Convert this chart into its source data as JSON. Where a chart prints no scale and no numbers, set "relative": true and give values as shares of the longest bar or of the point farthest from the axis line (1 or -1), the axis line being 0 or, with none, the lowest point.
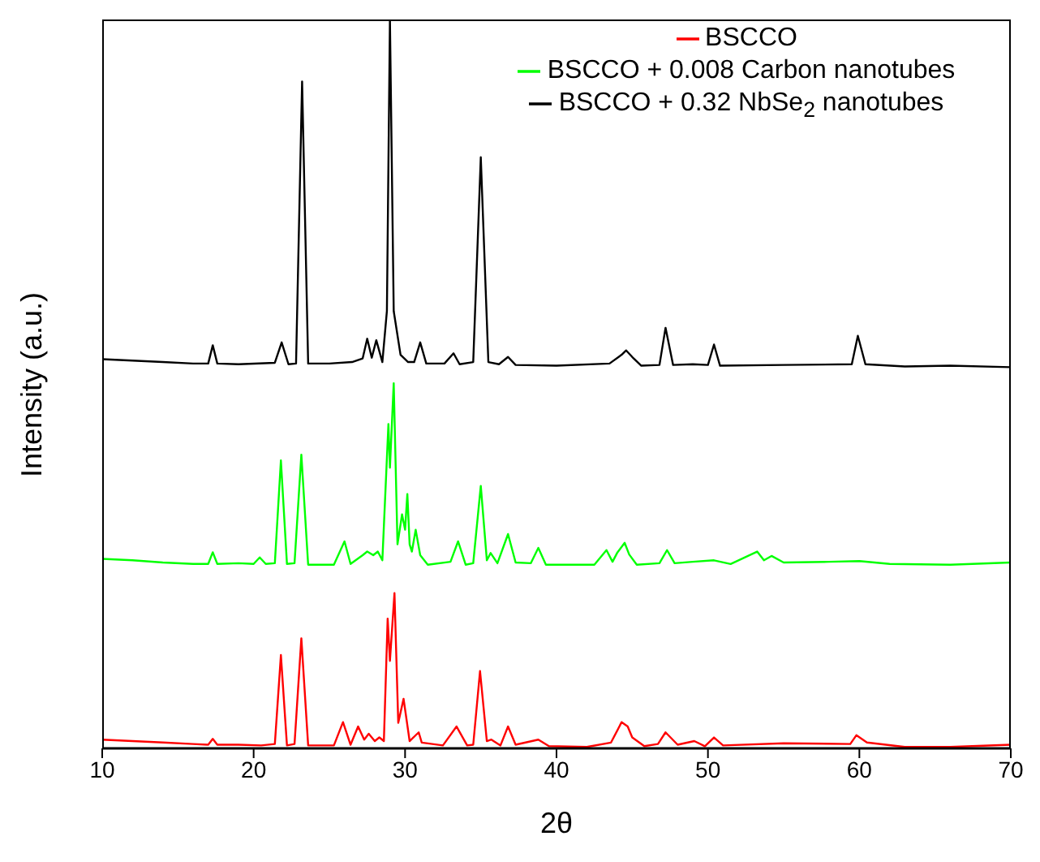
{
  "chart_data": {
    "type": "line",
    "xlabel": "2θ",
    "ylabel": "Intensity (a.u.)",
    "relative": true,
    "xlim": [
      10,
      70
    ],
    "xticks": [
      10,
      20,
      30,
      40,
      50,
      60,
      70
    ],
    "legend": "top right",
    "grid": false,
    "marker": "none",
    "line_style": "solid",
    "series": [
      {
        "name": "BSCCO",
        "color": "#ff0000",
        "x": [
          10,
          12,
          14,
          16,
          17.0,
          17.3,
          17.6,
          19,
          20.5,
          21.4,
          21.8,
          22.2,
          22.7,
          23.15,
          23.6,
          25.3,
          25.9,
          26.4,
          26.9,
          27.3,
          27.6,
          28.0,
          28.3,
          28.6,
          28.85,
          29.0,
          29.3,
          29.55,
          29.9,
          30.3,
          30.9,
          31.1,
          32.5,
          33.4,
          34.1,
          34.5,
          34.95,
          35.4,
          35.7,
          36.3,
          36.8,
          37.3,
          38.8,
          39.5,
          42,
          43.6,
          44.3,
          44.7,
          45.0,
          45.8,
          46.7,
          47.2,
          48,
          49.1,
          49.8,
          50.4,
          51,
          55,
          59.4,
          59.8,
          60.5,
          63,
          66,
          70
        ],
        "values": [
          0.012,
          0.01,
          0.008,
          0.006,
          0.005,
          0.013,
          0.005,
          0.005,
          0.004,
          0.006,
          0.128,
          0.004,
          0.006,
          0.151,
          0.004,
          0.004,
          0.036,
          0.005,
          0.03,
          0.012,
          0.02,
          0.01,
          0.015,
          0.01,
          0.178,
          0.12,
          0.213,
          0.035,
          0.068,
          0.01,
          0.022,
          0.008,
          0.004,
          0.03,
          0.004,
          0.005,
          0.106,
          0.01,
          0.012,
          0.004,
          0.03,
          0.005,
          0.012,
          0.003,
          0.002,
          0.008,
          0.036,
          0.03,
          0.015,
          0.003,
          0.006,
          0.022,
          0.005,
          0.01,
          0.003,
          0.015,
          0.004,
          0.007,
          0.006,
          0.018,
          0.008,
          0.002,
          0.002,
          0.005
        ]
      },
      {
        "name": "BSCCO + 0.008 Carbon nanotubes",
        "color": "#00ff00",
        "x": [
          10,
          12,
          14,
          16,
          17.0,
          17.3,
          17.6,
          19,
          20.0,
          20.4,
          20.8,
          21.4,
          21.8,
          22.2,
          22.7,
          23.15,
          23.6,
          25.3,
          26.0,
          26.4,
          27.2,
          27.5,
          27.9,
          28.2,
          28.5,
          28.9,
          29.0,
          29.25,
          29.5,
          29.8,
          30.0,
          30.15,
          30.3,
          30.45,
          30.7,
          31.0,
          31.5,
          33.0,
          33.5,
          34.0,
          34.5,
          35.0,
          35.4,
          35.65,
          36.1,
          36.8,
          37.3,
          38.3,
          38.8,
          39.3,
          42.5,
          43.3,
          43.7,
          44.0,
          44.5,
          44.8,
          45.3,
          46.8,
          47.3,
          47.8,
          49,
          50.4,
          51.5,
          53.25,
          53.7,
          54.2,
          55,
          58,
          60,
          62,
          66,
          70
        ],
        "values": [
          0.26,
          0.258,
          0.255,
          0.253,
          0.253,
          0.269,
          0.253,
          0.254,
          0.253,
          0.262,
          0.253,
          0.254,
          0.395,
          0.253,
          0.254,
          0.403,
          0.252,
          0.252,
          0.284,
          0.253,
          0.265,
          0.27,
          0.265,
          0.27,
          0.258,
          0.445,
          0.385,
          0.501,
          0.28,
          0.321,
          0.3,
          0.349,
          0.28,
          0.27,
          0.3,
          0.265,
          0.252,
          0.256,
          0.284,
          0.252,
          0.254,
          0.36,
          0.258,
          0.268,
          0.254,
          0.294,
          0.255,
          0.254,
          0.275,
          0.252,
          0.252,
          0.272,
          0.256,
          0.268,
          0.282,
          0.266,
          0.252,
          0.254,
          0.272,
          0.254,
          0.256,
          0.258,
          0.253,
          0.27,
          0.258,
          0.264,
          0.255,
          0.256,
          0.257,
          0.253,
          0.252,
          0.255
        ]
      },
      {
        "name": "BSCCO + 0.32 NbSe$_{2}$ nanotubes",
        "color": "#000000",
        "x": [
          10,
          12,
          14,
          16,
          17.0,
          17.3,
          17.6,
          19,
          21.4,
          21.85,
          22.3,
          22.8,
          23.2,
          23.6,
          25,
          26.5,
          27.2,
          27.5,
          27.8,
          28.1,
          28.5,
          28.8,
          29.0,
          29.25,
          29.7,
          30.2,
          30.6,
          31.0,
          31.4,
          32.6,
          33.2,
          33.6,
          34.5,
          35.0,
          35.5,
          36.2,
          36.8,
          37.3,
          40,
          43.5,
          44.3,
          44.6,
          45.0,
          45.6,
          46.8,
          47.2,
          47.7,
          49,
          50,
          50.4,
          50.8,
          55,
          59.5,
          59.9,
          60.4,
          63,
          66,
          70
        ],
        "values": [
          0.534,
          0.532,
          0.53,
          0.528,
          0.528,
          0.553,
          0.528,
          0.527,
          0.529,
          0.557,
          0.527,
          0.528,
          0.915,
          0.528,
          0.528,
          0.53,
          0.535,
          0.562,
          0.536,
          0.56,
          0.53,
          0.6,
          1.0,
          0.6,
          0.54,
          0.53,
          0.53,
          0.557,
          0.528,
          0.528,
          0.542,
          0.527,
          0.53,
          0.811,
          0.53,
          0.527,
          0.537,
          0.526,
          0.525,
          0.528,
          0.54,
          0.546,
          0.537,
          0.525,
          0.526,
          0.577,
          0.526,
          0.527,
          0.526,
          0.554,
          0.525,
          0.526,
          0.527,
          0.566,
          0.527,
          0.524,
          0.525,
          0.523
        ]
      }
    ]
  }
}
